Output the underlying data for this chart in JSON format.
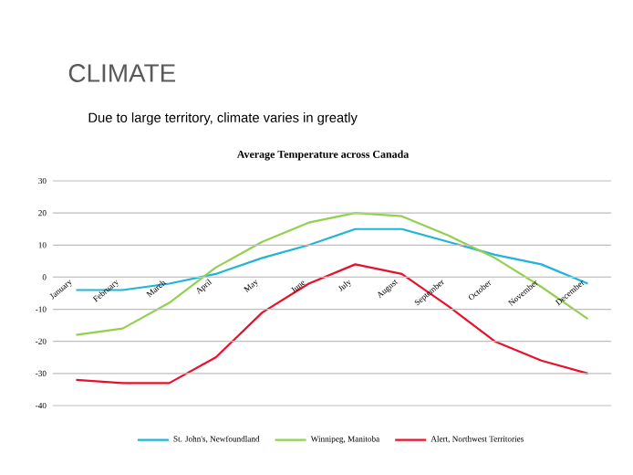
{
  "chart_data": {
    "type": "line",
    "title": "Average Temperature across Canada",
    "annotations": [
      "CLIMATE",
      "Due to large territory, climate varies in greatly"
    ],
    "categories": [
      "January",
      "February",
      "March",
      "April",
      "May",
      "June",
      "July",
      "August",
      "September",
      "October",
      "November",
      "December"
    ],
    "series": [
      {
        "name": "St. John's, Newfoundland",
        "color": "#1fb4d8",
        "values": [
          -4,
          -4,
          -2,
          1,
          6,
          10,
          15,
          15,
          11,
          7,
          4,
          -2
        ]
      },
      {
        "name": "Winnipeg, Manitoba",
        "color": "#92d050",
        "values": [
          -18,
          -16,
          -8,
          3,
          11,
          17,
          20,
          19,
          13,
          6,
          -3,
          -13
        ]
      },
      {
        "name": "Alert, Northwest Territories",
        "color": "#e8102a",
        "values": [
          -32,
          -33,
          -33,
          -25,
          -11,
          -2,
          4,
          1,
          -9,
          -20,
          -26,
          -30
        ]
      }
    ],
    "ylim": [
      -40,
      30
    ],
    "yticks": [
      -40,
      -30,
      -20,
      -10,
      0,
      10,
      20,
      30
    ],
    "grid": "y",
    "legend": "bottom",
    "marker": "none",
    "line_style": "solid"
  }
}
